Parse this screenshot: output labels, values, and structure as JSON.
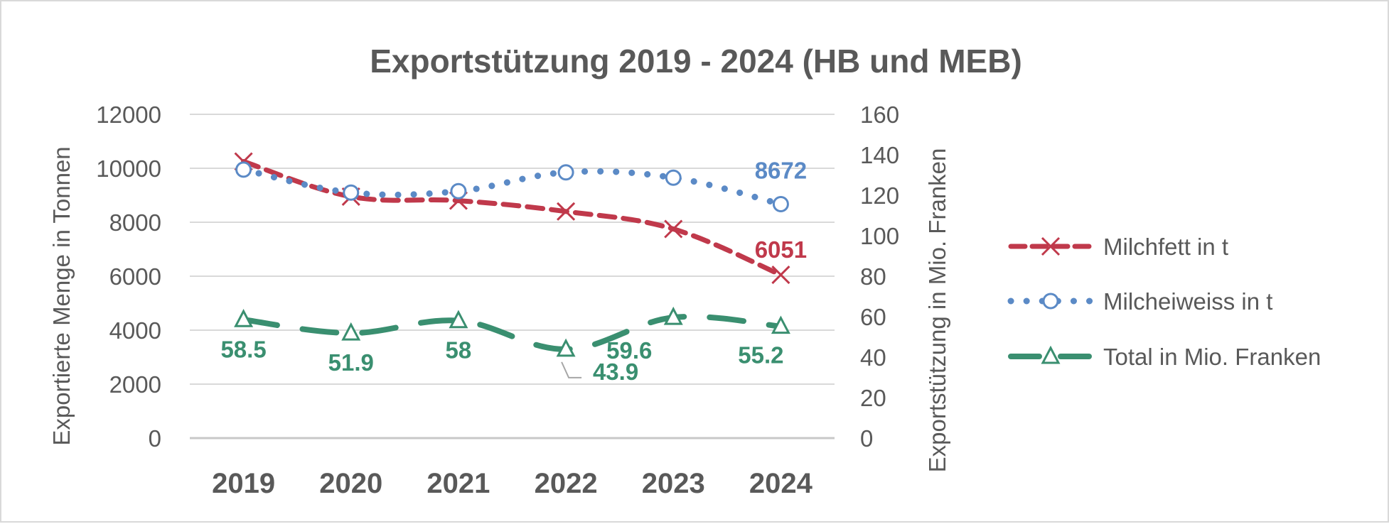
{
  "chart_data": {
    "type": "line",
    "title": "Exportstützung 2019 - 2024 (HB und MEB)",
    "categories": [
      "2019",
      "2020",
      "2021",
      "2022",
      "2023",
      "2024"
    ],
    "y_left": {
      "label": "Exportierte Menge in Tonnen",
      "range": [
        0,
        12000
      ],
      "ticks": [
        "0",
        "2000",
        "4000",
        "6000",
        "8000",
        "10000",
        "12000"
      ]
    },
    "y_right": {
      "label": "Exportstützung in Mio. Franken",
      "range": [
        0,
        160
      ],
      "ticks": [
        "0",
        "20",
        "40",
        "60",
        "80",
        "100",
        "120",
        "140",
        "160"
      ]
    },
    "grid": true,
    "legend_position": "right",
    "series": [
      {
        "name": "Milchfett in t",
        "axis": "left",
        "color": "#c0394b",
        "marker": "x",
        "line_style": "dashed",
        "values": [
          10250,
          8950,
          8800,
          8400,
          7750,
          6051
        ],
        "data_labels": [
          "",
          "",
          "",
          "",
          "",
          "6051"
        ]
      },
      {
        "name": "Milcheiweiss in t",
        "axis": "left",
        "color": "#5b8ac6",
        "marker": "circle",
        "line_style": "dotted",
        "values": [
          9950,
          9100,
          9150,
          9850,
          9650,
          8672
        ],
        "data_labels": [
          "",
          "",
          "",
          "",
          "",
          "8672"
        ]
      },
      {
        "name": "Total in Mio. Franken",
        "axis": "right",
        "color": "#3a8f70",
        "marker": "triangle",
        "line_style": "long-dash",
        "values": [
          58.5,
          51.9,
          58,
          43.9,
          59.6,
          55.2
        ],
        "data_labels": [
          "58.5",
          "51.9",
          "58",
          "43.9",
          "59.6",
          "55.2"
        ]
      }
    ]
  }
}
